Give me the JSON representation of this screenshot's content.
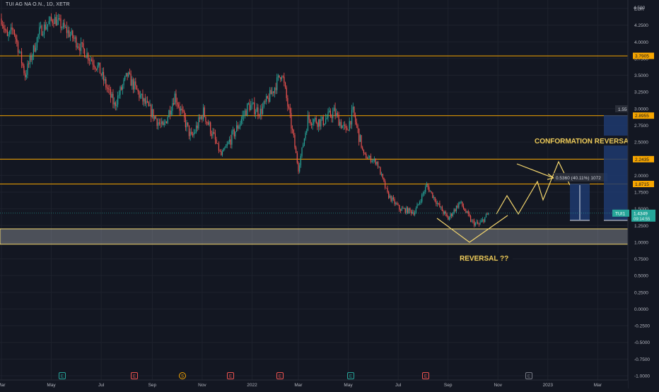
{
  "header": {
    "symbol_line": "TUI AG NA O.N., 1D, XETR"
  },
  "colors": {
    "background": "#131722",
    "grid": "#1e222d",
    "up": "#26a69a",
    "down": "#ef5350",
    "level_line": "#f7a600",
    "annotation": "#f5d76e",
    "support_zone": "#d1d4dc",
    "projection_fill": "#1e3a6e",
    "text": "#b2b5be",
    "price_badge": "#26a69a"
  },
  "chart_data": {
    "type": "candlestick",
    "currency_label": "EUR",
    "y_ticks": [
      "4.500",
      "4.2500",
      "4.0000",
      "3.7500",
      "3.5000",
      "3.2500",
      "3.0000",
      "2.7500",
      "2.5000",
      "2.2500",
      "2.0000",
      "1.7500",
      "1.5000",
      "1.2500",
      "1.0000",
      "0.7500",
      "0.5000",
      "0.2500",
      "0.0000",
      "-0.2500",
      "-0.5000",
      "-0.7500",
      "-1.0000"
    ],
    "ylim": [
      -1.0,
      4.5
    ],
    "x_ticks": [
      "Mar",
      "May",
      "Jul",
      "Sep",
      "Nov",
      "2022",
      "Mar",
      "May",
      "Jul",
      "Sep",
      "Nov",
      "2023",
      "Mar"
    ],
    "x_tick_index": [
      0,
      42,
      84,
      127,
      169,
      211,
      250,
      292,
      334,
      376,
      418,
      460,
      502
    ],
    "horizontal_levels": [
      {
        "value": 3.7905,
        "label": "3.7905"
      },
      {
        "value": 2.8955,
        "label": "2.8955"
      },
      {
        "value": 2.2435,
        "label": "2.2435"
      },
      {
        "value": 1.8715,
        "label": "1.8715"
      }
    ],
    "support_zone": {
      "top": 1.2,
      "bottom": 0.97
    },
    "current_price": {
      "value": 1.4349,
      "ticker": "TUI1",
      "price_label": "1.4349",
      "countdown": "09:14:55"
    },
    "bar_count": 410,
    "key_points": [
      [
        0,
        4.35
      ],
      [
        5,
        4.05
      ],
      [
        10,
        4.2
      ],
      [
        20,
        3.5
      ],
      [
        32,
        4.15
      ],
      [
        44,
        4.35
      ],
      [
        56,
        4.15
      ],
      [
        75,
        3.75
      ],
      [
        82,
        3.6
      ],
      [
        95,
        3.05
      ],
      [
        106,
        3.5
      ],
      [
        118,
        3.15
      ],
      [
        136,
        2.7
      ],
      [
        146,
        3.2
      ],
      [
        160,
        2.55
      ],
      [
        170,
        2.95
      ],
      [
        185,
        2.3
      ],
      [
        198,
        2.7
      ],
      [
        208,
        3.05
      ],
      [
        218,
        2.95
      ],
      [
        228,
        3.25
      ],
      [
        236,
        3.55
      ],
      [
        244,
        2.75
      ],
      [
        250,
        2.1
      ],
      [
        258,
        2.85
      ],
      [
        270,
        2.8
      ],
      [
        280,
        2.95
      ],
      [
        290,
        2.65
      ],
      [
        296,
        2.95
      ],
      [
        305,
        2.3
      ],
      [
        316,
        2.2
      ],
      [
        325,
        1.72
      ],
      [
        335,
        1.5
      ],
      [
        348,
        1.45
      ],
      [
        358,
        1.85
      ],
      [
        368,
        1.55
      ],
      [
        376,
        1.35
      ],
      [
        386,
        1.6
      ],
      [
        396,
        1.3
      ],
      [
        402,
        1.26
      ],
      [
        410,
        1.43
      ]
    ],
    "measure": {
      "label": "0.5360 (40.11%) 1072",
      "top_label": "1.55"
    },
    "annotations": [
      {
        "text": "CONFORMATION REVERSAL"
      },
      {
        "text": "REVERSAL ??"
      }
    ],
    "event_markers": [
      "E",
      "E",
      "S",
      "E",
      "E",
      "E",
      "E",
      "E"
    ]
  }
}
